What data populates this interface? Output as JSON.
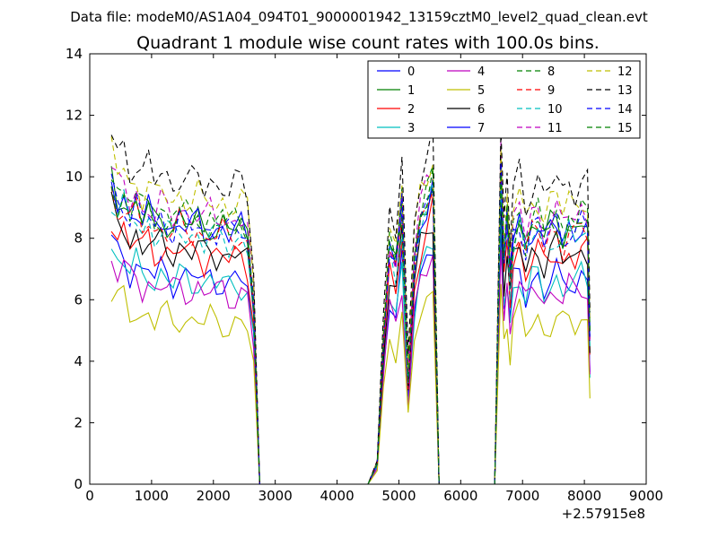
{
  "page": {
    "suptitle": "Data file: modeM0/AS1A04_094T01_9000001942_13159cztM0_level2_quad_clean.evt"
  },
  "chart_data": {
    "type": "line",
    "title": "Quadrant 1 module wise count rates with 100.0s bins.",
    "xlabel": "",
    "ylabel": "",
    "x_offset_label": "+2.57915e8",
    "xlim": [
      0,
      9000
    ],
    "ylim": [
      0,
      14
    ],
    "xticks": [
      0,
      1000,
      2000,
      3000,
      4000,
      5000,
      6000,
      7000,
      8000,
      9000
    ],
    "yticks": [
      0,
      2,
      4,
      6,
      8,
      10,
      12,
      14
    ],
    "grid": false,
    "legend_position": "top-right",
    "legend_columns": 4,
    "series": [
      {
        "name": "0",
        "color": "#0000ff",
        "dash": "solid",
        "base": 6.8
      },
      {
        "name": "1",
        "color": "#008000",
        "dash": "solid",
        "base": 8.6
      },
      {
        "name": "2",
        "color": "#ff0000",
        "dash": "solid",
        "base": 7.6
      },
      {
        "name": "3",
        "color": "#00bfbf",
        "dash": "solid",
        "base": 6.7
      },
      {
        "name": "4",
        "color": "#bf00bf",
        "dash": "solid",
        "base": 6.4
      },
      {
        "name": "5",
        "color": "#bfbf00",
        "dash": "solid",
        "base": 5.4
      },
      {
        "name": "6",
        "color": "#000000",
        "dash": "solid",
        "base": 7.7
      },
      {
        "name": "7",
        "color": "#0000ff",
        "dash": "solid",
        "base": 8.5
      },
      {
        "name": "8",
        "color": "#008000",
        "dash": "dashed",
        "base": 8.8
      },
      {
        "name": "9",
        "color": "#ff0000",
        "dash": "dashed",
        "base": 8.3
      },
      {
        "name": "10",
        "color": "#00bfbf",
        "dash": "dashed",
        "base": 8.2
      },
      {
        "name": "11",
        "color": "#bf00bf",
        "dash": "dashed",
        "base": 8.9
      },
      {
        "name": "12",
        "color": "#bfbf00",
        "dash": "dashed",
        "base": 9.4
      },
      {
        "name": "13",
        "color": "#000000",
        "dash": "dashed",
        "base": 10.0
      },
      {
        "name": "14",
        "color": "#0000ff",
        "dash": "dashed",
        "base": 8.5
      },
      {
        "name": "15",
        "color": "#008000",
        "dash": "dashed",
        "base": 8.6
      }
    ],
    "time_profile": {
      "x": [
        350,
        450,
        550,
        650,
        750,
        850,
        950,
        1050,
        1150,
        1250,
        1350,
        1450,
        1550,
        1650,
        1750,
        1850,
        1950,
        2050,
        2150,
        2250,
        2350,
        2450,
        2550,
        2650,
        2750,
        2850,
        3000,
        3500,
        4000,
        4500,
        4650,
        4750,
        4850,
        4950,
        5050,
        5150,
        5250,
        5350,
        5450,
        5550,
        5650,
        5750,
        6000,
        6500,
        6550,
        6650,
        6700,
        6750,
        6800,
        6850,
        6950,
        7050,
        7150,
        7250,
        7350,
        7450,
        7550,
        7650,
        7750,
        7850,
        7950,
        8050,
        8090
      ],
      "scale": [
        1.15,
        1.08,
        1.1,
        1.02,
        1.06,
        1.0,
        1.04,
        0.98,
        1.02,
        1.0,
        0.97,
        1.01,
        0.99,
        0.98,
        1.0,
        0.96,
        0.99,
        0.97,
        0.98,
        0.95,
        0.97,
        0.98,
        0.94,
        0.7,
        0.0,
        0.0,
        0.0,
        0.0,
        0.0,
        0.0,
        0.08,
        0.55,
        0.9,
        0.82,
        1.05,
        0.4,
        0.85,
        1.02,
        1.08,
        1.15,
        0.0,
        0.0,
        0.0,
        0.0,
        0.0,
        1.2,
        0.85,
        1.0,
        0.78,
        0.95,
        1.02,
        0.9,
        0.98,
        1.0,
        0.92,
        0.97,
        1.0,
        0.94,
        0.99,
        0.96,
        1.0,
        0.98,
        0.55
      ]
    }
  }
}
